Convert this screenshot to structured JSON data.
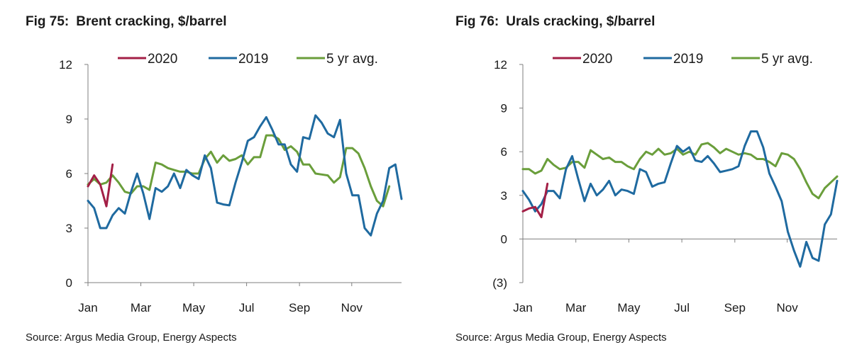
{
  "charts": [
    {
      "fig_label": "Fig 75:",
      "title": "Brent cracking, $/barrel",
      "source": "Source: Argus Media Group, Energy Aspects"
    },
    {
      "fig_label": "Fig 76:",
      "title": "Urals cracking, $/barrel",
      "source": "Source: Argus Media Group, Energy Aspects"
    }
  ],
  "chart_data": [
    {
      "type": "line",
      "title": "Brent cracking, $/barrel",
      "xlabel": "",
      "ylabel": "",
      "x_ticks": [
        "Jan",
        "Mar",
        "May",
        "Jul",
        "Sep",
        "Nov"
      ],
      "x_tick_weeks": [
        1,
        9.6,
        18.2,
        26.8,
        35.4,
        43.9
      ],
      "ylim": [
        0,
        12
      ],
      "y_ticks": [
        0,
        3,
        6,
        9,
        12
      ],
      "y_tick_labels": [
        "0",
        "3",
        "6",
        "9",
        "12"
      ],
      "grid": false,
      "legend_position": "top",
      "series": [
        {
          "name": "2020",
          "color": "#a31f46",
          "x": [
            1,
            2,
            3,
            4,
            5
          ],
          "values": [
            5.3,
            5.9,
            5.4,
            4.2,
            6.5
          ]
        },
        {
          "name": "2019",
          "color": "#1f6aa0",
          "x": [
            1,
            2,
            3,
            4,
            5,
            6,
            7,
            8,
            9,
            10,
            11,
            12,
            13,
            14,
            15,
            16,
            17,
            18,
            19,
            20,
            21,
            22,
            23,
            24,
            25,
            26,
            27,
            28,
            29,
            30,
            31,
            32,
            33,
            34,
            35,
            36,
            37,
            38,
            39,
            40,
            41,
            42,
            43,
            44,
            45,
            46,
            47,
            48,
            49,
            50,
            51,
            52
          ],
          "values": [
            4.5,
            4.1,
            3.0,
            3.0,
            3.7,
            4.1,
            3.8,
            5.0,
            6.0,
            4.9,
            3.5,
            5.2,
            5.0,
            5.3,
            6.0,
            5.2,
            6.2,
            5.9,
            5.7,
            7.0,
            6.3,
            4.4,
            4.3,
            4.25,
            5.5,
            6.6,
            7.8,
            8.0,
            8.6,
            9.1,
            8.4,
            7.6,
            7.6,
            6.5,
            6.1,
            8.0,
            7.9,
            9.2,
            8.8,
            8.2,
            8.0,
            8.95,
            6.0,
            4.8,
            4.8,
            3.0,
            2.6,
            3.8,
            4.5,
            6.3,
            6.5,
            4.6
          ]
        },
        {
          "name": "5 yr avg.",
          "color": "#6a9e3b",
          "x": [
            1,
            2,
            3,
            4,
            5,
            6,
            7,
            8,
            9,
            10,
            11,
            12,
            13,
            14,
            15,
            16,
            17,
            18,
            19,
            20,
            21,
            22,
            23,
            24,
            25,
            26,
            27,
            28,
            29,
            30,
            31,
            32,
            33,
            34,
            35,
            36,
            37,
            38,
            39,
            40,
            41,
            42,
            43,
            44,
            45,
            46,
            47,
            48,
            49,
            50
          ],
          "values": [
            5.4,
            5.7,
            5.4,
            5.5,
            5.9,
            5.5,
            5.0,
            4.9,
            5.3,
            5.3,
            5.1,
            6.6,
            6.5,
            6.3,
            6.2,
            6.1,
            6.1,
            6.0,
            6.0,
            6.8,
            7.2,
            6.6,
            7.0,
            6.7,
            6.8,
            7.0,
            6.5,
            6.9,
            6.9,
            8.1,
            8.1,
            7.9,
            7.3,
            7.5,
            7.2,
            6.5,
            6.5,
            6.0,
            5.95,
            5.9,
            5.5,
            5.8,
            7.4,
            7.4,
            7.1,
            6.3,
            5.3,
            4.5,
            4.2,
            5.3
          ]
        }
      ]
    },
    {
      "type": "line",
      "title": "Urals cracking, $/barrel",
      "xlabel": "",
      "ylabel": "",
      "x_ticks": [
        "Jan",
        "Mar",
        "May",
        "Jul",
        "Sep",
        "Nov"
      ],
      "x_tick_weeks": [
        1,
        9.6,
        18.2,
        26.8,
        35.4,
        43.9
      ],
      "ylim": [
        -3,
        12
      ],
      "y_ticks": [
        -3,
        0,
        3,
        6,
        9,
        12
      ],
      "y_tick_labels": [
        "(3)",
        "0",
        "3",
        "6",
        "9",
        "12"
      ],
      "grid": false,
      "legend_position": "top",
      "series": [
        {
          "name": "2020",
          "color": "#a31f46",
          "x": [
            1,
            2,
            3,
            4,
            5
          ],
          "values": [
            1.9,
            2.1,
            2.2,
            1.5,
            3.8
          ]
        },
        {
          "name": "2019",
          "color": "#1f6aa0",
          "x": [
            1,
            2,
            3,
            4,
            5,
            6,
            7,
            8,
            9,
            10,
            11,
            12,
            13,
            14,
            15,
            16,
            17,
            18,
            19,
            20,
            21,
            22,
            23,
            24,
            25,
            26,
            27,
            28,
            29,
            30,
            31,
            32,
            33,
            34,
            35,
            36,
            37,
            38,
            39,
            40,
            41,
            42,
            43,
            44,
            45,
            46,
            47,
            48,
            49,
            50,
            51,
            52
          ],
          "values": [
            3.3,
            2.7,
            1.9,
            2.4,
            3.3,
            3.3,
            2.8,
            4.8,
            5.7,
            4.1,
            2.6,
            3.8,
            3.0,
            3.4,
            4.0,
            3.0,
            3.4,
            3.3,
            3.1,
            4.8,
            4.6,
            3.6,
            3.8,
            3.9,
            5.2,
            6.4,
            6.0,
            6.3,
            5.4,
            5.3,
            5.7,
            5.2,
            4.6,
            4.7,
            4.8,
            5.0,
            6.4,
            7.4,
            7.4,
            6.3,
            4.5,
            3.6,
            2.6,
            0.5,
            -0.8,
            -1.9,
            -0.2,
            -1.3,
            -1.5,
            1.0,
            1.7,
            4.0
          ]
        },
        {
          "name": "5 yr avg.",
          "color": "#6a9e3b",
          "x": [
            1,
            2,
            3,
            4,
            5,
            6,
            7,
            8,
            9,
            10,
            11,
            12,
            13,
            14,
            15,
            16,
            17,
            18,
            19,
            20,
            21,
            22,
            23,
            24,
            25,
            26,
            27,
            28,
            29,
            30,
            31,
            32,
            33,
            34,
            35,
            36,
            37,
            38,
            39,
            40,
            41,
            42,
            43,
            44,
            45,
            46,
            47,
            48,
            49,
            50,
            51,
            52
          ],
          "values": [
            4.8,
            4.8,
            4.5,
            4.7,
            5.5,
            5.1,
            4.8,
            4.9,
            5.3,
            5.3,
            4.9,
            6.1,
            5.8,
            5.5,
            5.6,
            5.3,
            5.3,
            5.0,
            4.8,
            5.5,
            6.0,
            5.8,
            6.2,
            5.8,
            5.9,
            6.2,
            5.8,
            6.0,
            5.8,
            6.5,
            6.6,
            6.3,
            5.9,
            6.2,
            6.0,
            5.8,
            5.9,
            5.8,
            5.5,
            5.5,
            5.3,
            5.0,
            5.9,
            5.8,
            5.5,
            4.8,
            3.9,
            3.1,
            2.8,
            3.5,
            3.9,
            4.3
          ]
        }
      ]
    }
  ]
}
